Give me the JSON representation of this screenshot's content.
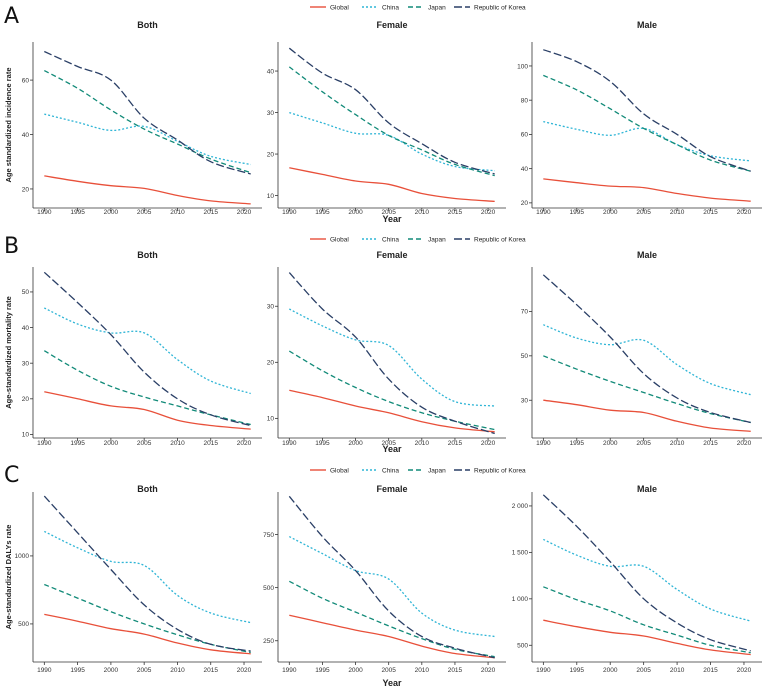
{
  "figure": {
    "panel_labels": [
      "A",
      "B",
      "C"
    ],
    "legend": [
      {
        "name": "Global",
        "color": "#e8503a",
        "dash": "solid"
      },
      {
        "name": "China",
        "color": "#2fb5d6",
        "dash": "dotted"
      },
      {
        "name": "Japan",
        "color": "#118a78",
        "dash": "dashed"
      },
      {
        "name": "Republic of Korea",
        "color": "#2a3f66",
        "dash": "longdash"
      }
    ],
    "xlabel": "Year",
    "facet_titles": [
      "Both",
      "Female",
      "Male"
    ]
  },
  "chart_data": [
    {
      "type": "line",
      "panel": "A",
      "facet": "Both",
      "ylabel": "Age standardized incidence rate",
      "x": [
        1990,
        1995,
        2000,
        2005,
        2010,
        2015,
        2021
      ],
      "xticks": [
        1990,
        1995,
        2000,
        2005,
        2010,
        2015,
        2020
      ],
      "ylim": [
        13,
        74
      ],
      "yticks": [
        20,
        40,
        60
      ],
      "series": [
        {
          "name": "Global",
          "values": [
            24.8,
            22.8,
            21.2,
            20.2,
            17.6,
            15.6,
            14.5
          ]
        },
        {
          "name": "China",
          "values": [
            47.5,
            44.5,
            41.5,
            43.0,
            37.5,
            32.0,
            29.0
          ]
        },
        {
          "name": "Japan",
          "values": [
            63.5,
            57.0,
            49.0,
            42.0,
            36.5,
            31.0,
            26.0
          ]
        },
        {
          "name": "Republic of Korea",
          "values": [
            70.5,
            65.0,
            60.0,
            46.0,
            38.0,
            30.0,
            25.5
          ]
        }
      ]
    },
    {
      "type": "line",
      "panel": "A",
      "facet": "Female",
      "ylabel": "",
      "x": [
        1990,
        1995,
        2000,
        2005,
        2010,
        2015,
        2021
      ],
      "xticks": [
        1990,
        1995,
        2000,
        2005,
        2010,
        2015,
        2020
      ],
      "ylim": [
        7,
        47
      ],
      "yticks": [
        10,
        20,
        30,
        40
      ],
      "series": [
        {
          "name": "Global",
          "values": [
            16.7,
            15.1,
            13.5,
            12.7,
            10.5,
            9.3,
            8.6
          ]
        },
        {
          "name": "China",
          "values": [
            30.0,
            27.5,
            25.0,
            24.5,
            20.0,
            17.0,
            16.0
          ]
        },
        {
          "name": "Japan",
          "values": [
            41.0,
            35.0,
            29.5,
            24.5,
            21.0,
            17.5,
            14.8
          ]
        },
        {
          "name": "Republic of Korea",
          "values": [
            45.5,
            39.5,
            35.5,
            27.5,
            22.5,
            18.0,
            15.2
          ]
        }
      ]
    },
    {
      "type": "line",
      "panel": "A",
      "facet": "Male",
      "ylabel": "",
      "x": [
        1990,
        1995,
        2000,
        2005,
        2010,
        2015,
        2021
      ],
      "xticks": [
        1990,
        1995,
        2000,
        2005,
        2010,
        2015,
        2020
      ],
      "ylim": [
        17,
        114
      ],
      "yticks": [
        20,
        40,
        60,
        80,
        100
      ],
      "series": [
        {
          "name": "Global",
          "values": [
            34.0,
            31.8,
            29.8,
            28.9,
            25.5,
            22.8,
            21.0
          ]
        },
        {
          "name": "China",
          "values": [
            67.5,
            63.0,
            59.5,
            63.5,
            54.0,
            47.5,
            44.5
          ]
        },
        {
          "name": "Japan",
          "values": [
            94.5,
            86.0,
            75.0,
            63.5,
            54.0,
            45.0,
            38.5
          ]
        },
        {
          "name": "Republic of Korea",
          "values": [
            109.5,
            102.5,
            91.0,
            72.0,
            60.0,
            47.0,
            38.5
          ]
        }
      ]
    },
    {
      "type": "line",
      "panel": "B",
      "facet": "Both",
      "ylabel": "Age-standardized mortality rate",
      "x": [
        1990,
        1995,
        2000,
        2005,
        2010,
        2015,
        2021
      ],
      "xticks": [
        1990,
        1995,
        2000,
        2005,
        2010,
        2015,
        2020
      ],
      "ylim": [
        9,
        57
      ],
      "yticks": [
        10,
        20,
        30,
        40,
        50
      ],
      "series": [
        {
          "name": "Global",
          "values": [
            22.0,
            20.0,
            18.0,
            17.0,
            14.0,
            12.5,
            11.5
          ]
        },
        {
          "name": "China",
          "values": [
            45.5,
            41.0,
            38.5,
            38.5,
            31.0,
            25.0,
            21.5
          ]
        },
        {
          "name": "Japan",
          "values": [
            33.5,
            28.0,
            23.5,
            20.5,
            18.0,
            15.5,
            12.8
          ]
        },
        {
          "name": "Republic of Korea",
          "values": [
            55.5,
            47.0,
            38.0,
            27.5,
            20.0,
            15.5,
            12.5
          ]
        }
      ]
    },
    {
      "type": "line",
      "panel": "B",
      "facet": "Female",
      "ylabel": "",
      "x": [
        1990,
        1995,
        2000,
        2005,
        2010,
        2015,
        2021
      ],
      "xticks": [
        1990,
        1995,
        2000,
        2005,
        2010,
        2015,
        2020
      ],
      "ylim": [
        6.5,
        37
      ],
      "yticks": [
        10,
        20,
        30
      ],
      "series": [
        {
          "name": "Global",
          "values": [
            15.0,
            13.7,
            12.2,
            11.0,
            9.4,
            8.3,
            7.6
          ]
        },
        {
          "name": "China",
          "values": [
            29.5,
            26.5,
            24.0,
            23.0,
            17.0,
            13.0,
            12.2
          ]
        },
        {
          "name": "Japan",
          "values": [
            22.0,
            18.5,
            15.5,
            13.0,
            11.0,
            9.5,
            8.0
          ]
        },
        {
          "name": "Republic of Korea",
          "values": [
            36.0,
            29.5,
            24.5,
            17.0,
            12.0,
            9.5,
            7.3
          ]
        }
      ]
    },
    {
      "type": "line",
      "panel": "B",
      "facet": "Male",
      "ylabel": "",
      "x": [
        1990,
        1995,
        2000,
        2005,
        2010,
        2015,
        2021
      ],
      "xticks": [
        1990,
        1995,
        2000,
        2005,
        2010,
        2015,
        2020
      ],
      "ylim": [
        13,
        90
      ],
      "yticks": [
        30,
        50,
        70
      ],
      "series": [
        {
          "name": "Global",
          "values": [
            30.0,
            28.0,
            25.5,
            24.5,
            20.5,
            17.5,
            16.0
          ]
        },
        {
          "name": "China",
          "values": [
            64.0,
            58.0,
            55.0,
            57.0,
            46.0,
            37.5,
            32.5
          ]
        },
        {
          "name": "Japan",
          "values": [
            50.0,
            44.0,
            38.5,
            33.5,
            28.5,
            24.0,
            20.0
          ]
        },
        {
          "name": "Republic of Korea",
          "values": [
            86.5,
            73.0,
            58.5,
            42.0,
            31.0,
            24.5,
            20.0
          ]
        }
      ]
    },
    {
      "type": "line",
      "panel": "C",
      "facet": "Both",
      "ylabel": "Age-standardized DALYs rate",
      "x": [
        1990,
        1995,
        2000,
        2005,
        2010,
        2015,
        2021
      ],
      "xticks": [
        1990,
        1995,
        2000,
        2005,
        2010,
        2015,
        2020
      ],
      "ylim": [
        220,
        1470
      ],
      "yticks": [
        500,
        1000
      ],
      "series": [
        {
          "name": "Global",
          "values": [
            570,
            520,
            465,
            425,
            360,
            310,
            280
          ]
        },
        {
          "name": "China",
          "values": [
            1180,
            1060,
            960,
            930,
            710,
            580,
            510
          ]
        },
        {
          "name": "Japan",
          "values": [
            790,
            690,
            590,
            500,
            420,
            350,
            290
          ]
        },
        {
          "name": "Republic of Korea",
          "values": [
            1440,
            1170,
            900,
            640,
            460,
            350,
            300
          ]
        }
      ]
    },
    {
      "type": "line",
      "panel": "C",
      "facet": "Female",
      "ylabel": "",
      "x": [
        1990,
        1995,
        2000,
        2005,
        2010,
        2015,
        2021
      ],
      "xticks": [
        1990,
        1995,
        2000,
        2005,
        2010,
        2015,
        2020
      ],
      "ylim": [
        150,
        950
      ],
      "yticks": [
        250,
        500,
        750
      ],
      "series": [
        {
          "name": "Global",
          "values": [
            370,
            335,
            300,
            270,
            225,
            190,
            170
          ]
        },
        {
          "name": "China",
          "values": [
            740,
            660,
            580,
            540,
            380,
            300,
            270
          ]
        },
        {
          "name": "Japan",
          "values": [
            530,
            450,
            385,
            320,
            260,
            210,
            175
          ]
        },
        {
          "name": "Republic of Korea",
          "values": [
            930,
            740,
            580,
            390,
            270,
            215,
            170
          ]
        }
      ]
    },
    {
      "type": "line",
      "panel": "C",
      "facet": "Male",
      "ylabel": "",
      "x": [
        1990,
        1995,
        2000,
        2005,
        2010,
        2015,
        2021
      ],
      "xticks": [
        1990,
        1995,
        2000,
        2005,
        2010,
        2015,
        2020
      ],
      "ylim": [
        320,
        2150
      ],
      "yticks": [
        500,
        1000,
        1500,
        2000
      ],
      "tick_labels": [
        "500",
        "1 000",
        "1 500",
        "2 000"
      ],
      "series": [
        {
          "name": "Global",
          "values": [
            770,
            700,
            640,
            600,
            520,
            450,
            400
          ]
        },
        {
          "name": "China",
          "values": [
            1640,
            1470,
            1350,
            1350,
            1100,
            890,
            760
          ]
        },
        {
          "name": "Japan",
          "values": [
            1130,
            990,
            870,
            720,
            610,
            500,
            420
          ]
        },
        {
          "name": "Republic of Korea",
          "values": [
            2120,
            1780,
            1400,
            1000,
            740,
            560,
            440
          ]
        }
      ]
    }
  ]
}
